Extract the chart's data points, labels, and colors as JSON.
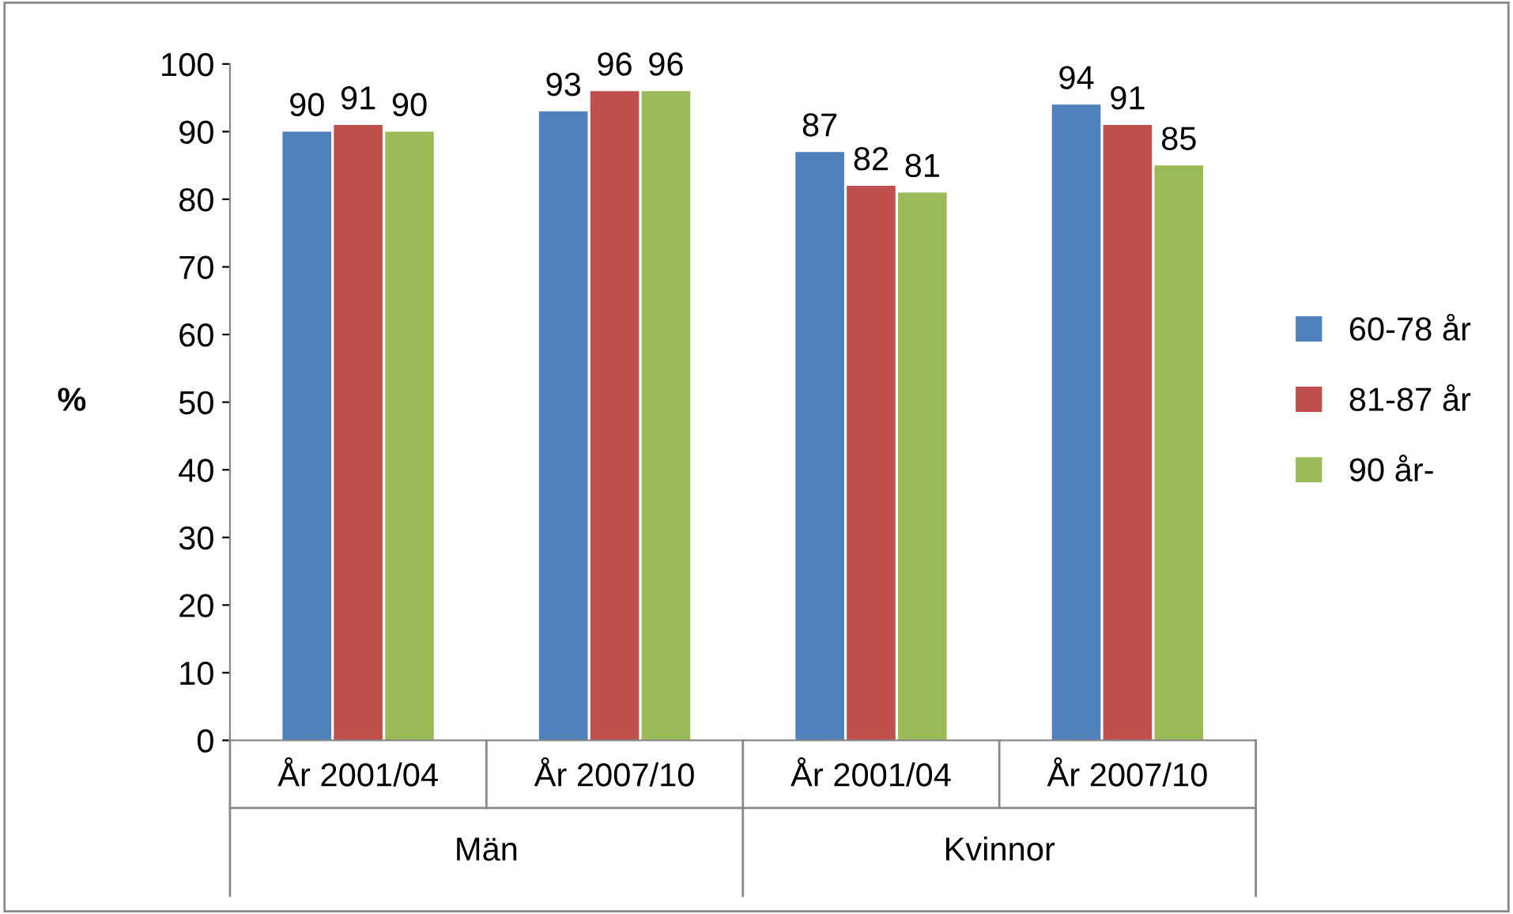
{
  "chart_data": {
    "type": "bar",
    "ylabel": "%",
    "categories": [
      "År 2001/04",
      "År 2007/10",
      "År 2001/04",
      "År 2007/10"
    ],
    "series": [
      {
        "name": "60-78 år",
        "color": "#4f81bd",
        "values": [
          90,
          93,
          87,
          94
        ]
      },
      {
        "name": "81-87 år",
        "color": "#c0504d",
        "values": [
          91,
          96,
          82,
          91
        ]
      },
      {
        "name": "90 år-",
        "color": "#9bbb59",
        "values": [
          90,
          96,
          81,
          85
        ]
      }
    ],
    "annotations": [
      "Män",
      "Kvinnor"
    ],
    "ylim": [
      0,
      100
    ],
    "yticks": [
      0,
      10,
      20,
      30,
      40,
      50,
      60,
      70,
      80,
      90,
      100
    ],
    "data_labels": true,
    "legend": "right",
    "grid": false
  }
}
